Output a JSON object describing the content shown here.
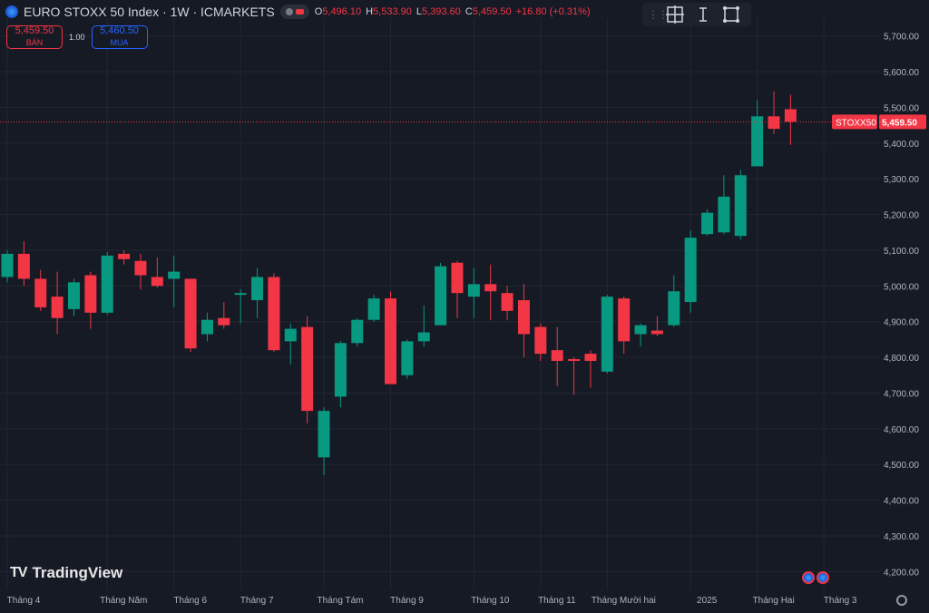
{
  "legend": {
    "title": "EURO STOXX 50 Index · 1W · ICMARKETS",
    "ohlc": [
      {
        "k": "O",
        "v": "5,496.10"
      },
      {
        "k": "H",
        "v": "5,533.90"
      },
      {
        "k": "L",
        "v": "5,393.60"
      },
      {
        "k": "C",
        "v": "5,459.50"
      },
      {
        "k": "",
        "v": "+16.80 (+0.31%)"
      }
    ]
  },
  "trade": {
    "sell_price": "5,459.50",
    "sell_label": "BÁN",
    "spread": "1.00",
    "buy_price": "5,460.50",
    "buy_label": "MUA"
  },
  "toolbar": {
    "tools": [
      "crosshair-plus-icon",
      "text-cursor-icon",
      "select-box-icon"
    ]
  },
  "watermark": {
    "text": "TradingView"
  },
  "colors": {
    "up": "#089981",
    "down": "#f23645",
    "background": "#161a25",
    "grid": "#232632"
  },
  "chart_data": {
    "type": "candlestick",
    "symbol_label": "STOXX50",
    "last_price_label": "5,459.50",
    "last_price": 5459.5,
    "ylim": [
      4150,
      5750
    ],
    "y_ticks": [
      4200,
      4300,
      4400,
      4500,
      4600,
      4700,
      4800,
      4900,
      5000,
      5100,
      5200,
      5300,
      5400,
      5500,
      5600,
      5700
    ],
    "y_tick_labels": [
      "4,200.00",
      "4,300.00",
      "4,400.00",
      "4,500.00",
      "4,600.00",
      "4,700.00",
      "4,800.00",
      "4,900.00",
      "5,000.00",
      "5,100.00",
      "5,200.00",
      "5,300.00",
      "5,400.00",
      "5,500.00",
      "5,600.00",
      "5,700.00"
    ],
    "x_labels": [
      {
        "i": 0,
        "label": "Tháng 4"
      },
      {
        "i": 6,
        "label": "Tháng Năm"
      },
      {
        "i": 10,
        "label": "Tháng 6"
      },
      {
        "i": 14,
        "label": "Tháng 7"
      },
      {
        "i": 19,
        "label": "Tháng Tám"
      },
      {
        "i": 23,
        "label": "Tháng 9"
      },
      {
        "i": 28,
        "label": "Tháng 10"
      },
      {
        "i": 32,
        "label": "Tháng 11"
      },
      {
        "i": 36,
        "label": "Tháng Mười hai"
      },
      {
        "i": 41,
        "label": "2025"
      },
      {
        "i": 45,
        "label": "Tháng Hai"
      },
      {
        "i": 49,
        "label": "Tháng 3"
      }
    ],
    "candles": [
      {
        "o": 5025,
        "h": 5100,
        "l": 5010,
        "c": 5090
      },
      {
        "o": 5090,
        "h": 5125,
        "l": 5000,
        "c": 5020
      },
      {
        "o": 5020,
        "h": 5045,
        "l": 4930,
        "c": 4940
      },
      {
        "o": 4970,
        "h": 5040,
        "l": 4865,
        "c": 4910
      },
      {
        "o": 4935,
        "h": 5020,
        "l": 4915,
        "c": 5010
      },
      {
        "o": 5030,
        "h": 5040,
        "l": 4880,
        "c": 4925
      },
      {
        "o": 4925,
        "h": 5095,
        "l": 4920,
        "c": 5085
      },
      {
        "o": 5090,
        "h": 5100,
        "l": 5060,
        "c": 5075
      },
      {
        "o": 5070,
        "h": 5090,
        "l": 4990,
        "c": 5030
      },
      {
        "o": 5025,
        "h": 5080,
        "l": 4995,
        "c": 5000
      },
      {
        "o": 5020,
        "h": 5085,
        "l": 4940,
        "c": 5040
      },
      {
        "o": 5020,
        "h": 5020,
        "l": 4815,
        "c": 4825
      },
      {
        "o": 4865,
        "h": 4925,
        "l": 4845,
        "c": 4905
      },
      {
        "o": 4910,
        "h": 4955,
        "l": 4880,
        "c": 4890
      },
      {
        "o": 4975,
        "h": 4990,
        "l": 4895,
        "c": 4980
      },
      {
        "o": 4960,
        "h": 5050,
        "l": 4910,
        "c": 5025
      },
      {
        "o": 5025,
        "h": 5035,
        "l": 4815,
        "c": 4820
      },
      {
        "o": 4845,
        "h": 4895,
        "l": 4780,
        "c": 4880
      },
      {
        "o": 4885,
        "h": 4915,
        "l": 4615,
        "c": 4650
      },
      {
        "o": 4520,
        "h": 4660,
        "l": 4470,
        "c": 4650
      },
      {
        "o": 4690,
        "h": 4845,
        "l": 4660,
        "c": 4840
      },
      {
        "o": 4840,
        "h": 4910,
        "l": 4830,
        "c": 4905
      },
      {
        "o": 4905,
        "h": 4975,
        "l": 4900,
        "c": 4965
      },
      {
        "o": 4965,
        "h": 4985,
        "l": 4730,
        "c": 4725
      },
      {
        "o": 4750,
        "h": 4850,
        "l": 4740,
        "c": 4845
      },
      {
        "o": 4845,
        "h": 4945,
        "l": 4830,
        "c": 4870
      },
      {
        "o": 4890,
        "h": 5065,
        "l": 4890,
        "c": 5055
      },
      {
        "o": 5065,
        "h": 5070,
        "l": 4910,
        "c": 4980
      },
      {
        "o": 4970,
        "h": 5050,
        "l": 4910,
        "c": 5005
      },
      {
        "o": 5005,
        "h": 5060,
        "l": 4905,
        "c": 4985
      },
      {
        "o": 4980,
        "h": 5000,
        "l": 4905,
        "c": 4930
      },
      {
        "o": 4960,
        "h": 5005,
        "l": 4800,
        "c": 4865
      },
      {
        "o": 4885,
        "h": 4895,
        "l": 4790,
        "c": 4810
      },
      {
        "o": 4820,
        "h": 4885,
        "l": 4720,
        "c": 4790
      },
      {
        "o": 4795,
        "h": 4800,
        "l": 4695,
        "c": 4790
      },
      {
        "o": 4810,
        "h": 4820,
        "l": 4715,
        "c": 4790
      },
      {
        "o": 4760,
        "h": 4975,
        "l": 4755,
        "c": 4970
      },
      {
        "o": 4965,
        "h": 4970,
        "l": 4810,
        "c": 4845
      },
      {
        "o": 4865,
        "h": 4895,
        "l": 4830,
        "c": 4890
      },
      {
        "o": 4875,
        "h": 4915,
        "l": 4860,
        "c": 4865
      },
      {
        "o": 4890,
        "h": 5030,
        "l": 4885,
        "c": 4985
      },
      {
        "o": 4955,
        "h": 5155,
        "l": 4925,
        "c": 5135
      },
      {
        "o": 5145,
        "h": 5215,
        "l": 5140,
        "c": 5205
      },
      {
        "o": 5150,
        "h": 5310,
        "l": 5145,
        "c": 5250
      },
      {
        "o": 5140,
        "h": 5325,
        "l": 5130,
        "c": 5310
      },
      {
        "o": 5335,
        "h": 5520,
        "l": 5335,
        "c": 5475
      },
      {
        "o": 5475,
        "h": 5545,
        "l": 5425,
        "c": 5440
      },
      {
        "o": 5495,
        "h": 5535,
        "l": 5395,
        "c": 5460
      }
    ]
  }
}
